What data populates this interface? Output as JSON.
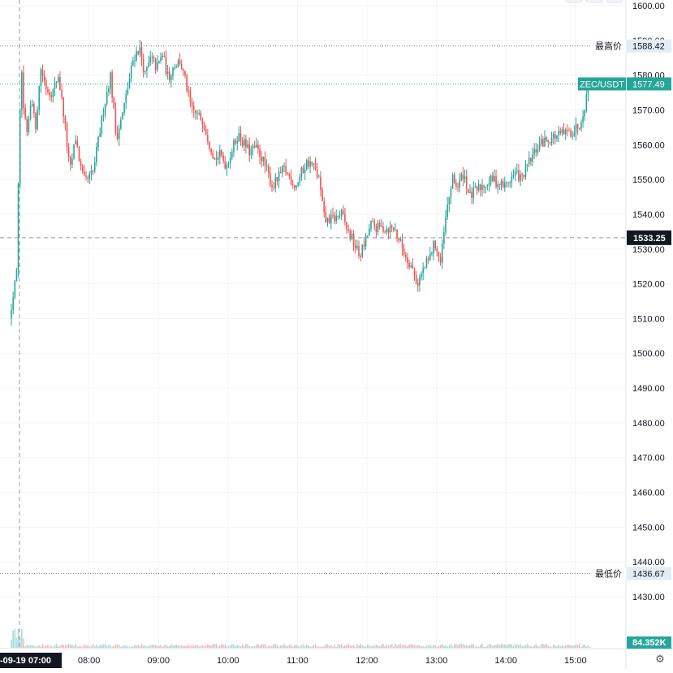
{
  "symbol": "ZEC/USDT",
  "settings_icon": "gear-icon",
  "colors": {
    "up": "#26a69a",
    "down": "#ef5350",
    "grid": "#f0f3fa",
    "axis_text": "#131722",
    "last_price_bg": "#26a69a",
    "crosshair_bg": "#131722",
    "marker_label_bg": "#e6ecf5"
  },
  "chart_data": {
    "type": "candlestick",
    "title": "",
    "xlabel": "",
    "ylabel": "",
    "ylim": [
      1420,
      1600
    ],
    "y_ticks": [
      "1600.00",
      "1590.00",
      "1580.00",
      "1570.00",
      "1560.00",
      "1550.00",
      "1540.00",
      "1530.00",
      "1520.00",
      "1510.00",
      "1500.00",
      "1490.00",
      "1480.00",
      "1470.00",
      "1460.00",
      "1450.00",
      "1440.00",
      "1430.00"
    ],
    "x_ticks": [
      "08:00",
      "09:00",
      "10:00",
      "11:00",
      "12:00",
      "13:00",
      "14:00",
      "15:00"
    ],
    "crosshair": {
      "x_label": "-09-19 07:00",
      "y_label": "1533.25",
      "y_value": 1533.25
    },
    "high_marker": {
      "label": "最高价",
      "value": "1588.42",
      "y_value": 1588.42
    },
    "low_marker": {
      "label": "最低价",
      "value": "1436.67",
      "y_value": 1436.67
    },
    "last_price": {
      "symbol": "ZEC/USDT",
      "value": "1577.49",
      "y_value": 1577.49
    },
    "volume_label": "84.352K",
    "price_path": [
      [
        "06:53",
        1510
      ],
      [
        "06:59",
        1525
      ],
      [
        "07:01",
        1555
      ],
      [
        "07:03",
        1582
      ],
      [
        "07:05",
        1572
      ],
      [
        "07:08",
        1562
      ],
      [
        "07:12",
        1575
      ],
      [
        "07:15",
        1564
      ],
      [
        "07:20",
        1582
      ],
      [
        "07:25",
        1576
      ],
      [
        "07:30",
        1575
      ],
      [
        "07:35",
        1580
      ],
      [
        "07:40",
        1568
      ],
      [
        "07:45",
        1552
      ],
      [
        "07:50",
        1562
      ],
      [
        "07:55",
        1552
      ],
      [
        "07:58",
        1549
      ],
      [
        "08:05",
        1552
      ],
      [
        "08:15",
        1572
      ],
      [
        "08:20",
        1580
      ],
      [
        "08:25",
        1562
      ],
      [
        "08:30",
        1568
      ],
      [
        "08:40",
        1585
      ],
      [
        "08:45",
        1588
      ],
      [
        "08:50",
        1580
      ],
      [
        "08:55",
        1585
      ],
      [
        "09:00",
        1582
      ],
      [
        "09:05",
        1586
      ],
      [
        "09:10",
        1579
      ],
      [
        "09:15",
        1583
      ],
      [
        "09:20",
        1584
      ],
      [
        "09:25",
        1578
      ],
      [
        "09:30",
        1570
      ],
      [
        "09:40",
        1567
      ],
      [
        "09:45",
        1561
      ],
      [
        "09:50",
        1556
      ],
      [
        "09:55",
        1557
      ],
      [
        "10:00",
        1554
      ],
      [
        "10:10",
        1563
      ],
      [
        "10:20",
        1558
      ],
      [
        "10:25",
        1559
      ],
      [
        "10:30",
        1557
      ],
      [
        "10:40",
        1548
      ],
      [
        "10:50",
        1553
      ],
      [
        "11:00",
        1548
      ],
      [
        "11:05",
        1552
      ],
      [
        "11:10",
        1555
      ],
      [
        "11:15",
        1554
      ],
      [
        "11:20",
        1550
      ],
      [
        "11:25",
        1538
      ],
      [
        "11:35",
        1539
      ],
      [
        "11:40",
        1540
      ],
      [
        "11:45",
        1535
      ],
      [
        "11:50",
        1532
      ],
      [
        "11:55",
        1528
      ],
      [
        "12:00",
        1532
      ],
      [
        "12:05",
        1537
      ],
      [
        "12:10",
        1536
      ],
      [
        "12:15",
        1536
      ],
      [
        "12:20",
        1536
      ],
      [
        "12:25",
        1536
      ],
      [
        "12:30",
        1532
      ],
      [
        "12:35",
        1528
      ],
      [
        "12:40",
        1525
      ],
      [
        "12:45",
        1520
      ],
      [
        "12:50",
        1524
      ],
      [
        "12:55",
        1527
      ],
      [
        "13:00",
        1532
      ],
      [
        "13:05",
        1526
      ],
      [
        "13:10",
        1540
      ],
      [
        "13:15",
        1550
      ],
      [
        "13:20",
        1548
      ],
      [
        "13:25",
        1552
      ],
      [
        "13:30",
        1545
      ],
      [
        "13:40",
        1548
      ],
      [
        "13:50",
        1550
      ],
      [
        "14:00",
        1548
      ],
      [
        "14:10",
        1552
      ],
      [
        "14:15",
        1550
      ],
      [
        "14:20",
        1554
      ],
      [
        "14:30",
        1560
      ],
      [
        "14:40",
        1562
      ],
      [
        "14:50",
        1563
      ],
      [
        "15:00",
        1564
      ],
      [
        "15:05",
        1566
      ],
      [
        "15:10",
        1572
      ],
      [
        "15:13",
        1577.49
      ]
    ]
  }
}
